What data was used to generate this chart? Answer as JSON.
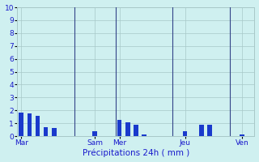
{
  "title": "Précipitations 24h ( mm )",
  "background_color": "#cff0f0",
  "bar_color": "#1a3acc",
  "grid_color": "#a8c8c8",
  "tick_label_color": "#1a1acc",
  "xlabel_color": "#1a1acc",
  "ylim": [
    0,
    10
  ],
  "yticks": [
    0,
    1,
    2,
    3,
    4,
    5,
    6,
    7,
    8,
    9,
    10
  ],
  "xlim": [
    -0.5,
    28.5
  ],
  "bar_width": 0.55,
  "bars": [
    {
      "x": 0,
      "height": 1.8
    },
    {
      "x": 1,
      "height": 1.75
    },
    {
      "x": 2,
      "height": 1.55
    },
    {
      "x": 3,
      "height": 0.7
    },
    {
      "x": 4,
      "height": 0.6
    },
    {
      "x": 9,
      "height": 0.35
    },
    {
      "x": 12,
      "height": 1.25
    },
    {
      "x": 13,
      "height": 1.1
    },
    {
      "x": 14,
      "height": 0.85
    },
    {
      "x": 15,
      "height": 0.15
    },
    {
      "x": 20,
      "height": 0.35
    },
    {
      "x": 22,
      "height": 0.85
    },
    {
      "x": 23,
      "height": 0.9
    },
    {
      "x": 27,
      "height": 0.1
    }
  ],
  "day_lines": [
    6.5,
    11.5,
    18.5,
    25.5
  ],
  "day_line_color": "#334488",
  "day_ticks": [
    {
      "x": 0,
      "label": "Mar"
    },
    {
      "x": 9,
      "label": "Sam"
    },
    {
      "x": 12,
      "label": "Mer"
    },
    {
      "x": 20,
      "label": "Jeu"
    },
    {
      "x": 27,
      "label": "Ven"
    }
  ]
}
